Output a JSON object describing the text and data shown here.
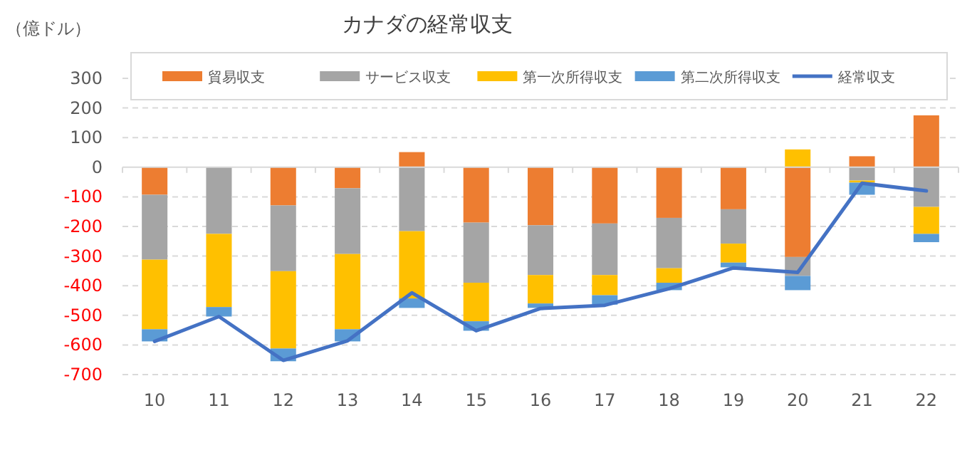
{
  "chart_data": {
    "type": "bar",
    "stacked": true,
    "title": "カナダの経常収支",
    "ylabel": "（億ドル）",
    "categories": [
      "10",
      "11",
      "12",
      "13",
      "14",
      "15",
      "16",
      "17",
      "18",
      "19",
      "20",
      "21",
      "22"
    ],
    "series": [
      {
        "name": "貿易収支",
        "color": "#ed7d31",
        "values": [
          -93,
          0,
          -129,
          -71,
          51,
          -187,
          -196,
          -190,
          -171,
          -142,
          -303,
          37,
          175
        ]
      },
      {
        "name": "サービス収支",
        "color": "#a5a5a5",
        "values": [
          -219,
          -225,
          -222,
          -222,
          -216,
          -203,
          -168,
          -174,
          -170,
          -116,
          -64,
          -45,
          -134
        ]
      },
      {
        "name": "第一次所得収支",
        "color": "#ffc000",
        "values": [
          -235,
          -247,
          -261,
          -254,
          -227,
          -130,
          -96,
          -68,
          -49,
          -64,
          60,
          -7,
          -91
        ]
      },
      {
        "name": "第二次所得収支",
        "color": "#5b9bd5",
        "values": [
          -41,
          -32,
          -43,
          -41,
          -32,
          -32,
          -15,
          -32,
          -25,
          -16,
          -48,
          -41,
          -28
        ]
      },
      {
        "name": "経常収支",
        "type": "line",
        "color": "#4472c4",
        "values": [
          -588,
          -504,
          -652,
          -586,
          -424,
          -552,
          -477,
          -466,
          -410,
          -340,
          -355,
          -54,
          -80
        ]
      }
    ],
    "ylim": [
      -700,
      300
    ],
    "yticks": [
      -700,
      -600,
      -500,
      -400,
      -300,
      -200,
      -100,
      0,
      100,
      200,
      300
    ],
    "grid": "y",
    "legend": "top",
    "marker": "none",
    "line_style": "solid"
  }
}
